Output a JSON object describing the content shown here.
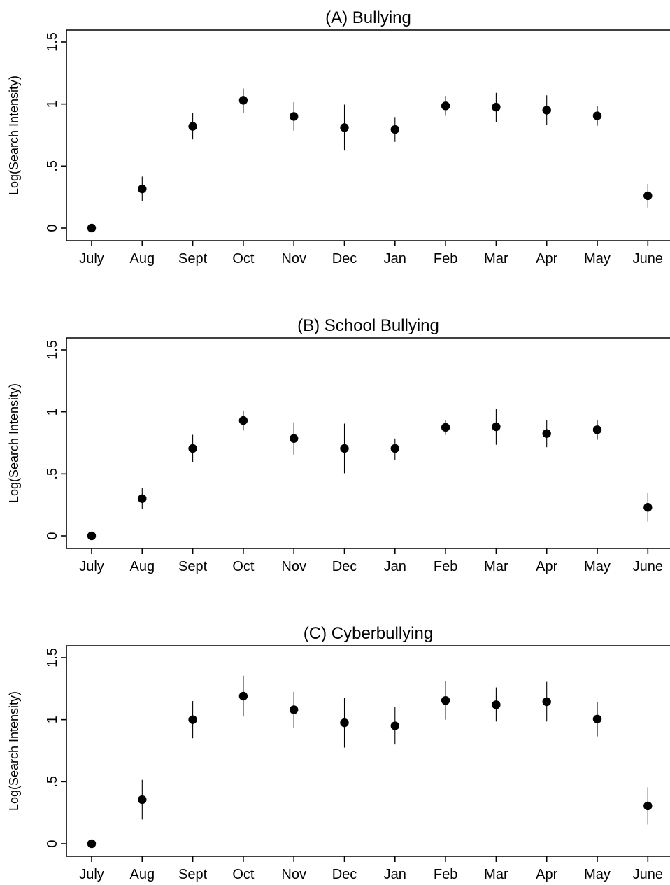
{
  "chart_data": [
    {
      "type": "scatter",
      "title": "(A) Bullying",
      "xlabel": "",
      "ylabel": "Log(Search Intensity)",
      "categories": [
        "July",
        "Aug",
        "Sept",
        "Oct",
        "Nov",
        "Dec",
        "Jan",
        "Feb",
        "Mar",
        "Apr",
        "May",
        "June"
      ],
      "yticks": [
        "0",
        ".5",
        "1",
        "1.5"
      ],
      "ytick_values": [
        0,
        0.5,
        1,
        1.5
      ],
      "ylim": [
        -0.1,
        1.6
      ],
      "grid": false,
      "values": [
        0,
        0.315,
        0.82,
        1.03,
        0.9,
        0.81,
        0.795,
        0.985,
        0.975,
        0.95,
        0.905,
        0.26
      ],
      "ci_low": [
        0,
        0.215,
        0.715,
        0.925,
        0.785,
        0.625,
        0.695,
        0.905,
        0.855,
        0.83,
        0.825,
        0.165
      ],
      "ci_high": [
        0,
        0.415,
        0.925,
        1.125,
        1.015,
        0.995,
        0.895,
        1.065,
        1.09,
        1.07,
        0.985,
        0.355
      ]
    },
    {
      "type": "scatter",
      "title": "(B) School Bullying",
      "xlabel": "",
      "ylabel": "Log(Search Intensity)",
      "categories": [
        "July",
        "Aug",
        "Sept",
        "Oct",
        "Nov",
        "Dec",
        "Jan",
        "Feb",
        "Mar",
        "Apr",
        "May",
        "June"
      ],
      "yticks": [
        "0",
        ".5",
        "1",
        "1.5"
      ],
      "ytick_values": [
        0,
        0.5,
        1,
        1.5
      ],
      "ylim": [
        -0.1,
        1.6
      ],
      "grid": false,
      "values": [
        0,
        0.3,
        0.705,
        0.93,
        0.785,
        0.705,
        0.705,
        0.875,
        0.88,
        0.825,
        0.855,
        0.23
      ],
      "ci_low": [
        0,
        0.215,
        0.595,
        0.85,
        0.655,
        0.505,
        0.615,
        0.815,
        0.735,
        0.715,
        0.775,
        0.115
      ],
      "ci_high": [
        0,
        0.385,
        0.815,
        1.01,
        0.915,
        0.905,
        0.785,
        0.935,
        1.025,
        0.935,
        0.935,
        0.345
      ]
    },
    {
      "type": "scatter",
      "title": "(C) Cyberbullying",
      "xlabel": "",
      "ylabel": "Log(Search Intensity)",
      "categories": [
        "July",
        "Aug",
        "Sept",
        "Oct",
        "Nov",
        "Dec",
        "Jan",
        "Feb",
        "Mar",
        "Apr",
        "May",
        "June"
      ],
      "yticks": [
        "0",
        ".5",
        "1",
        "1.5"
      ],
      "ytick_values": [
        0,
        0.5,
        1,
        1.5
      ],
      "ylim": [
        -0.1,
        1.6
      ],
      "grid": false,
      "values": [
        0,
        0.355,
        1.0,
        1.19,
        1.08,
        0.975,
        0.95,
        1.155,
        1.12,
        1.145,
        1.005,
        0.305
      ],
      "ci_low": [
        0,
        0.195,
        0.85,
        1.025,
        0.935,
        0.775,
        0.8,
        1.0,
        0.985,
        0.985,
        0.865,
        0.155
      ],
      "ci_high": [
        0,
        0.515,
        1.15,
        1.355,
        1.225,
        1.175,
        1.1,
        1.31,
        1.26,
        1.305,
        1.145,
        0.455
      ]
    }
  ]
}
